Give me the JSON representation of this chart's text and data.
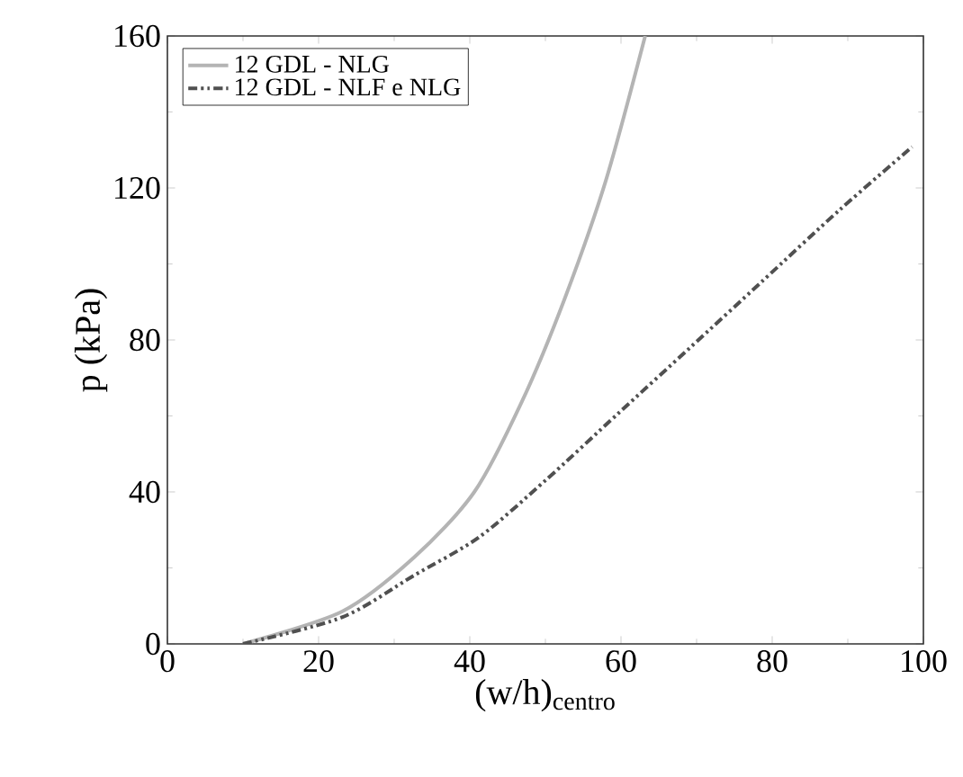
{
  "chart_data": {
    "type": "line",
    "xlabel": "(w/h)$_{centro}$",
    "ylabel": "p (kPa)",
    "xlim": [
      0,
      100
    ],
    "ylim": [
      0,
      160
    ],
    "xticks": [
      0,
      20,
      40,
      60,
      80,
      100
    ],
    "yticks": [
      0,
      40,
      80,
      120,
      160
    ],
    "legend": "top left",
    "grid": false,
    "series": [
      {
        "name": "12 GDL - NLG",
        "color": "#b4b4b4",
        "line_style": "solid",
        "x": [
          10,
          23.1,
          32.6,
          40.6,
          46.9,
          52.5,
          58,
          63.2
        ],
        "values": [
          0,
          8.5,
          22.7,
          40,
          63.8,
          90.6,
          122,
          160
        ]
      },
      {
        "name": "12 GDL - NLF e NLG",
        "color": "#505050",
        "line_style": "dashdotdotted",
        "x": [
          10,
          23.1,
          32.6,
          41.3,
          50.1,
          59.6,
          69.1,
          78.6,
          88.9,
          98.5
        ],
        "values": [
          0,
          7,
          18,
          28.2,
          43.2,
          60.6,
          77.9,
          95.3,
          114.2,
          130.8
        ]
      }
    ]
  }
}
